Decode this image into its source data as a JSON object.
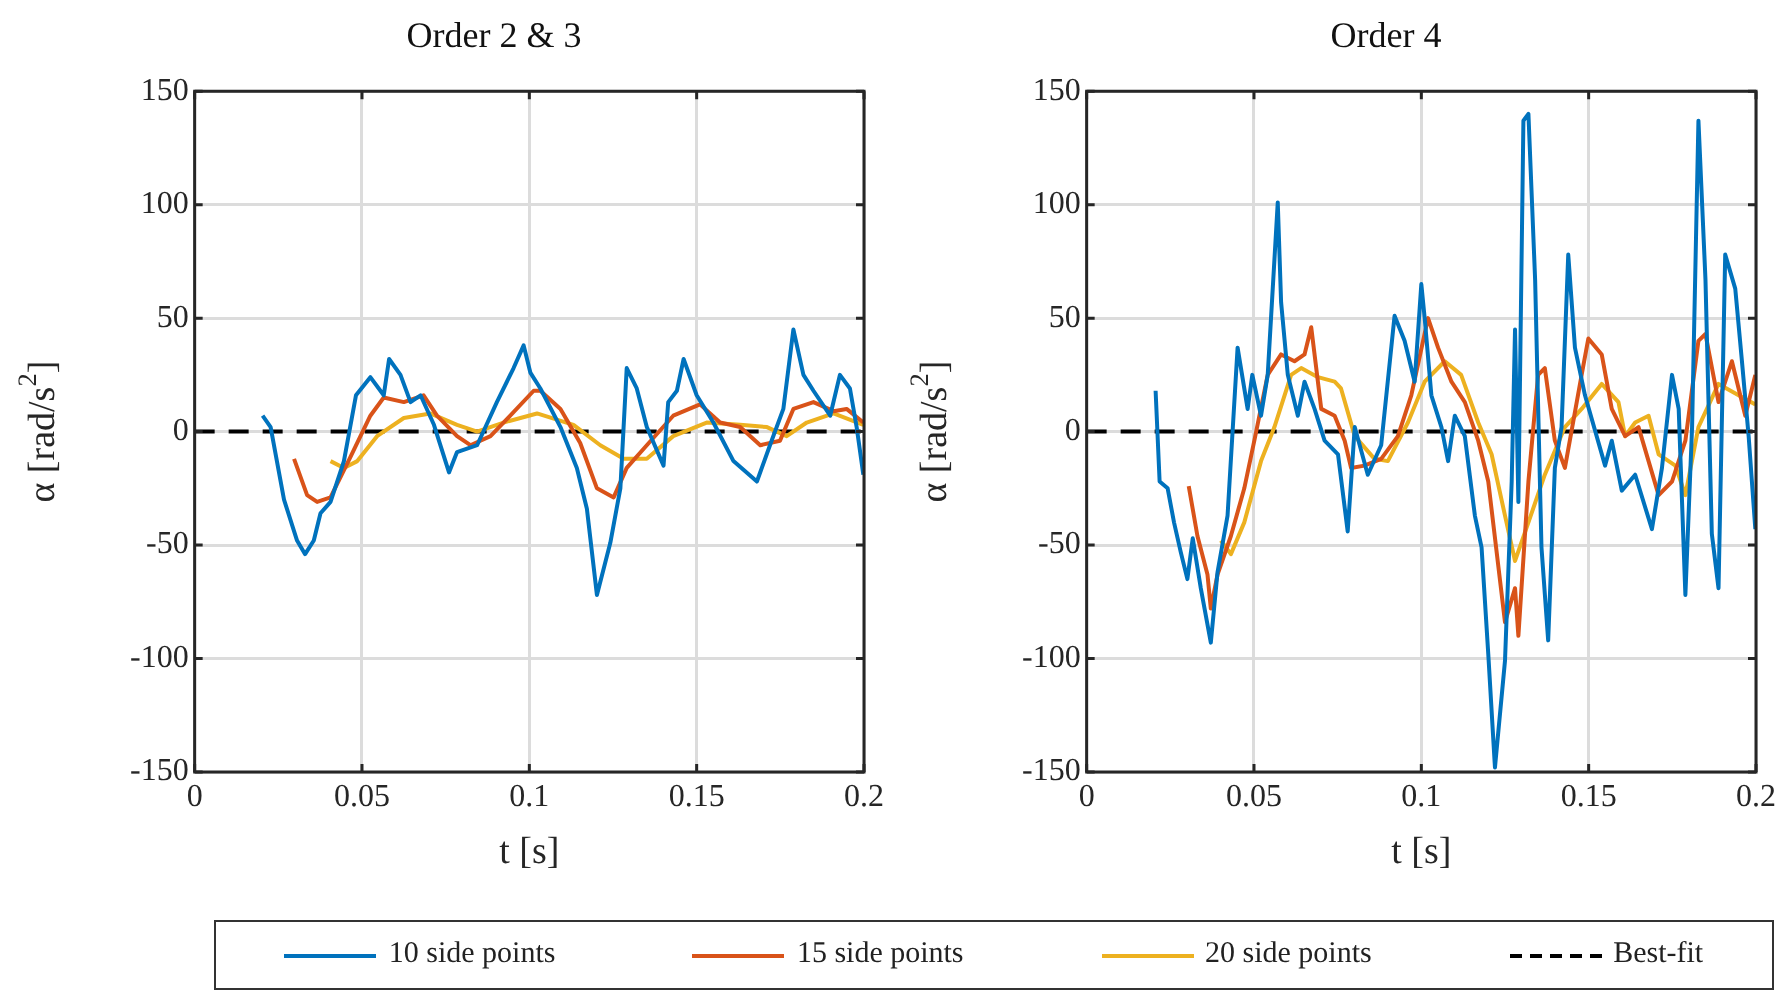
{
  "chart_data": [
    {
      "type": "line",
      "title": "Order 2 & 3",
      "xlabel": "t [s]",
      "ylabel": "α [rad/s$^{2}$]",
      "xlim": [
        0,
        0.2
      ],
      "xticks": [
        0,
        0.05,
        0.1,
        0.15,
        0.2
      ],
      "ylim": [
        -150,
        150
      ],
      "yticks": [
        -150,
        -100,
        -50,
        0,
        50,
        100,
        150
      ],
      "grid": true,
      "legend": "bottom",
      "marker": "none",
      "series": [
        {
          "name": "10 side points",
          "color": "#0072bd",
          "x": [
            0.0203,
            0.0227,
            0.0267,
            0.0306,
            0.033,
            0.0356,
            0.0376,
            0.0406,
            0.0446,
            0.0482,
            0.0525,
            0.0565,
            0.0581,
            0.0615,
            0.0645,
            0.0675,
            0.0715,
            0.076,
            0.0784,
            0.0844,
            0.0903,
            0.0953,
            0.0983,
            0.1003,
            0.1033,
            0.1093,
            0.1142,
            0.1172,
            0.1202,
            0.1242,
            0.1272,
            0.1291,
            0.1321,
            0.1351,
            0.1401,
            0.1415,
            0.1441,
            0.1461,
            0.15,
            0.155,
            0.161,
            0.168,
            0.1719,
            0.1759,
            0.1789,
            0.1819,
            0.1849,
            0.1899,
            0.1928,
            0.1958,
            0.1978,
            0.1998
          ],
          "values": [
            7,
            2,
            -30,
            -48,
            -54,
            -48,
            -36,
            -31,
            -13,
            16,
            24,
            16,
            32,
            25,
            13,
            16,
            3,
            -18,
            -9,
            -6,
            13,
            28,
            38,
            26,
            19,
            2,
            -16,
            -34,
            -72,
            -49,
            -25,
            28,
            19,
            2,
            -15,
            13,
            18,
            32,
            16,
            4,
            -13,
            -22,
            -6,
            10,
            45,
            25,
            18,
            7,
            25,
            19,
            2,
            -19
          ]
        },
        {
          "name": "15 side points",
          "color": "#d95319",
          "x": [
            0.0297,
            0.0336,
            0.0366,
            0.0406,
            0.0466,
            0.0525,
            0.0565,
            0.0625,
            0.0684,
            0.0724,
            0.0784,
            0.0824,
            0.0884,
            0.0943,
            0.1013,
            0.1033,
            0.1093,
            0.1152,
            0.1202,
            0.1252,
            0.1291,
            0.1351,
            0.143,
            0.151,
            0.157,
            0.163,
            0.169,
            0.1749,
            0.1789,
            0.1849,
            0.1909,
            0.1948,
            0.1998
          ],
          "values": [
            -12,
            -28,
            -31,
            -29,
            -11,
            7,
            15,
            13,
            16,
            7,
            -2,
            -6,
            -2,
            7,
            18,
            18,
            10,
            -5,
            -25,
            -29,
            -16,
            -6,
            7,
            12,
            4,
            2,
            -6,
            -4,
            10,
            13,
            9,
            10,
            4
          ]
        },
        {
          "name": "20 side points",
          "color": "#edb120",
          "x": [
            0.0406,
            0.0446,
            0.0486,
            0.0545,
            0.0625,
            0.0704,
            0.0784,
            0.0844,
            0.0923,
            0.1023,
            0.1132,
            0.1212,
            0.1282,
            0.1351,
            0.143,
            0.153,
            0.163,
            0.171,
            0.1769,
            0.1829,
            0.1909,
            0.1998
          ],
          "values": [
            -13,
            -16,
            -13,
            -2,
            6,
            8,
            3,
            0,
            4,
            8,
            3,
            -6,
            -12,
            -12,
            -2,
            4,
            3,
            2,
            -2,
            4,
            8,
            3
          ]
        },
        {
          "name": "Best-fit",
          "color": "#000000",
          "line_style": "dashed",
          "x": [
            0,
            0.2
          ],
          "values": [
            0,
            0
          ]
        }
      ]
    },
    {
      "type": "line",
      "title": "Order 4",
      "xlabel": "t [s]",
      "ylabel": "α [rad/s$^{2}$]",
      "xlim": [
        0,
        0.2
      ],
      "xticks": [
        0,
        0.05,
        0.1,
        0.15,
        0.2
      ],
      "ylim": [
        -150,
        150
      ],
      "yticks": [
        -150,
        -100,
        -50,
        0,
        50,
        100,
        150
      ],
      "grid": true,
      "marker": "none",
      "series": [
        {
          "color": "#0072bd",
          "x": [
            0.0206,
            0.0218,
            0.0242,
            0.0261,
            0.0281,
            0.0301,
            0.0317,
            0.0341,
            0.0371,
            0.0391,
            0.0421,
            0.0451,
            0.0481,
            0.0495,
            0.0521,
            0.0541,
            0.0571,
            0.0581,
            0.0601,
            0.0631,
            0.0651,
            0.0681,
            0.0711,
            0.0751,
            0.078,
            0.0801,
            0.084,
            0.088,
            0.092,
            0.095,
            0.098,
            0.1,
            0.101,
            0.103,
            0.106,
            0.108,
            0.11,
            0.113,
            0.116,
            0.118,
            0.12,
            0.122,
            0.125,
            0.127,
            0.128,
            0.129,
            0.1305,
            0.132,
            0.134,
            0.1359,
            0.1379,
            0.1399,
            0.1419,
            0.1439,
            0.1459,
            0.1489,
            0.1549,
            0.1569,
            0.1599,
            0.1639,
            0.1689,
            0.1719,
            0.1749,
            0.1769,
            0.1789,
            0.1809,
            0.1828,
            0.1849,
            0.1868,
            0.1888,
            0.1908,
            0.1938,
            0.1958,
            0.1978,
            0.1998
          ],
          "values": [
            18,
            -22,
            -25,
            -40,
            -53,
            -65,
            -47,
            -69,
            -93,
            -62,
            -37,
            37,
            10,
            25,
            7,
            25,
            101,
            57,
            25,
            7,
            22,
            10,
            -4,
            -10,
            -44,
            2,
            -19,
            -6,
            51,
            40,
            22,
            65,
            50,
            16,
            2,
            -13,
            7,
            -2,
            -37,
            -51,
            -98,
            -148,
            -101,
            -22,
            45,
            -31,
            137,
            140,
            67,
            -51,
            -92,
            -16,
            2,
            78,
            37,
            16,
            -15,
            -4,
            -26,
            -19,
            -43,
            -16,
            25,
            10,
            -72,
            2,
            137,
            67,
            -45,
            -69,
            78,
            63,
            31,
            -2,
            -43
          ]
        },
        {
          "color": "#d95319",
          "x": [
            0.0305,
            0.0331,
            0.0361,
            0.0371,
            0.0391,
            0.0431,
            0.0471,
            0.0501,
            0.0541,
            0.0581,
            0.0621,
            0.0651,
            0.0671,
            0.0701,
            0.0741,
            0.0771,
            0.079,
            0.083,
            0.088,
            0.093,
            0.097,
            0.102,
            0.105,
            0.109,
            0.113,
            0.117,
            0.12,
            0.125,
            0.128,
            0.129,
            0.132,
            0.1349,
            0.1369,
            0.1399,
            0.1429,
            0.1479,
            0.1499,
            0.1539,
            0.1569,
            0.1609,
            0.1649,
            0.1709,
            0.1749,
            0.1789,
            0.1828,
            0.1849,
            0.1888,
            0.1928,
            0.1968,
            0.1998
          ],
          "values": [
            -24,
            -46,
            -63,
            -78,
            -63,
            -46,
            -25,
            -4,
            25,
            34,
            31,
            34,
            46,
            10,
            7,
            -4,
            -16,
            -15,
            -12,
            -2,
            16,
            50,
            37,
            22,
            13,
            -4,
            -22,
            -84,
            -69,
            -90,
            -22,
            25,
            28,
            -4,
            -16,
            25,
            41,
            34,
            10,
            -2,
            2,
            -28,
            -22,
            -4,
            40,
            43,
            13,
            31,
            7,
            25
          ]
        },
        {
          "color": "#edb120",
          "x": [
            0.0401,
            0.0431,
            0.0471,
            0.0521,
            0.0561,
            0.0611,
            0.0641,
            0.0691,
            0.0741,
            0.076,
            0.0801,
            0.086,
            0.09,
            0.096,
            0.101,
            0.107,
            0.1119,
            0.117,
            0.121,
            0.125,
            0.128,
            0.132,
            0.1369,
            0.1429,
            0.1479,
            0.1539,
            0.1589,
            0.1609,
            0.1639,
            0.1679,
            0.1709,
            0.1759,
            0.1789,
            0.1828,
            0.1888,
            0.1948,
            0.1998
          ],
          "values": [
            -48,
            -54,
            -40,
            -13,
            2,
            25,
            28,
            24,
            22,
            19,
            -2,
            -12,
            -13,
            4,
            22,
            31,
            25,
            4,
            -10,
            -37,
            -57,
            -40,
            -19,
            2,
            10,
            21,
            13,
            -2,
            4,
            7,
            -10,
            -15,
            -28,
            2,
            21,
            16,
            12
          ]
        },
        {
          "color": "#000000",
          "line_style": "dashed",
          "x": [
            0,
            0.2
          ],
          "values": [
            0,
            0
          ]
        }
      ]
    }
  ]
}
